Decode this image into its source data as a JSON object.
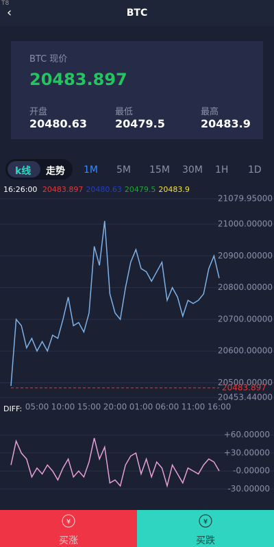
{
  "header": {
    "corner": "T8",
    "title": "BTC"
  },
  "card": {
    "label": "BTC 现价",
    "price": 20483.897,
    "stats": [
      {
        "label": "开盘",
        "value": 20480.63
      },
      {
        "label": "最低",
        "value": 20479.5
      },
      {
        "label": "最高",
        "value": 20483.9
      }
    ]
  },
  "tabs": {
    "modes": [
      "k线",
      "走势"
    ],
    "periods": [
      "1M",
      "5M",
      "15M",
      "30M",
      "1H",
      "1D"
    ]
  },
  "info": {
    "time": "16:26:00",
    "values": [
      {
        "value": 20483.897,
        "color": "#e53935"
      },
      {
        "value": 20480.63,
        "color": "#1e3fd0"
      },
      {
        "value": 20479.5,
        "color": "#21a336"
      },
      {
        "value": 20483.9,
        "color": "#f5e325"
      }
    ]
  },
  "chart_data": [
    {
      "type": "line",
      "categories": [
        null,
        null,
        null,
        null,
        null,
        "05:00",
        null,
        null,
        null,
        null,
        "10:00",
        null,
        null,
        null,
        null,
        "15:00",
        null,
        null,
        null,
        null,
        "20:00",
        null,
        null,
        null,
        null,
        "01:00",
        null,
        null,
        null,
        null,
        "06:00",
        null,
        null,
        null,
        null,
        "11:00",
        null,
        null,
        null,
        null,
        "16:00"
      ],
      "series": [
        {
          "color": "#7fb2e8",
          "values": [
            20490,
            20700,
            20680,
            20610,
            20640,
            20600,
            20630,
            20600,
            20650,
            20640,
            20700,
            20770,
            20680,
            20690,
            20660,
            20720,
            20930,
            20870,
            21010,
            20780,
            20720,
            20700,
            20800,
            20880,
            20920,
            20860,
            20850,
            20820,
            20850,
            20880,
            20760,
            20800,
            20770,
            20710,
            20760,
            20750,
            20760,
            20780,
            20860,
            20900,
            20830
          ]
        }
      ],
      "ylim": [
        20453.44,
        21079.95
      ],
      "yticks": [
        {
          "value": 20453.44,
          "label": "20453.44000"
        },
        {
          "value": 20500,
          "label": "20500.00000"
        },
        {
          "value": 20600,
          "label": "20600.00000"
        },
        {
          "value": 20700,
          "label": "20700.00000"
        },
        {
          "value": 20800,
          "label": "20800.00000"
        },
        {
          "value": 20900,
          "label": "20900.00000"
        },
        {
          "value": 21000,
          "label": "21000.00000"
        },
        {
          "value": 21079.95,
          "label": "21079.95000"
        }
      ],
      "price_line": {
        "value": 20483.897,
        "color": "#e53935"
      },
      "grid": true
    },
    {
      "type": "line",
      "title": "DIFF:",
      "series": [
        {
          "color": "#e8a0d8",
          "values": [
            10,
            50,
            30,
            20,
            -10,
            5,
            -5,
            10,
            0,
            -15,
            5,
            20,
            -10,
            0,
            -10,
            15,
            55,
            20,
            40,
            -20,
            -15,
            -25,
            10,
            25,
            30,
            -5,
            20,
            -10,
            15,
            5,
            -25,
            10,
            -5,
            -20,
            5,
            0,
            -5,
            10,
            20,
            15,
            0
          ]
        }
      ],
      "ylim": [
        -40,
        70
      ],
      "yticks": [
        {
          "value": -30,
          "label": "-30.00000"
        },
        {
          "value": 0,
          "label": "-0.00000"
        },
        {
          "value": 30,
          "label": "+30.00000"
        },
        {
          "value": 60,
          "label": "+60.00000"
        }
      ]
    }
  ],
  "buttons": [
    "买涨",
    "买跌"
  ]
}
